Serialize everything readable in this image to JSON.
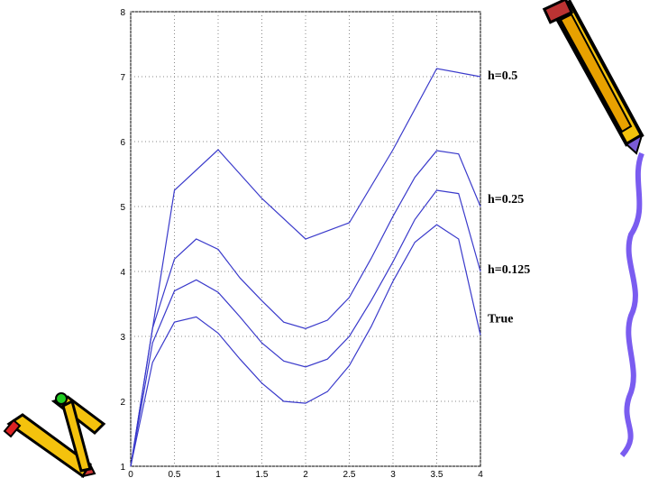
{
  "chart_data": {
    "type": "line",
    "xlim": [
      0,
      4
    ],
    "ylim": [
      1,
      8
    ],
    "xticks": [
      0,
      0.5,
      1,
      1.5,
      2,
      2.5,
      3,
      3.5,
      4
    ],
    "yticks": [
      1,
      2,
      3,
      4,
      5,
      6,
      7,
      8
    ],
    "grid": true,
    "series": [
      {
        "name": "h=0.5",
        "color": "#3a3acb",
        "x": [
          0,
          0.5,
          1,
          1.5,
          2,
          2.5,
          3,
          3.5,
          4
        ],
        "values": [
          1,
          5.25,
          5.875,
          5.125,
          4.5,
          4.75,
          5.875,
          7.125,
          7.0
        ]
      },
      {
        "name": "h=0.25",
        "color": "#3a3acb",
        "x": [
          0,
          0.25,
          0.5,
          0.75,
          1,
          1.25,
          1.5,
          1.75,
          2,
          2.25,
          2.5,
          2.75,
          3,
          3.25,
          3.5,
          3.75,
          4
        ],
        "values": [
          1,
          3.125,
          4.19,
          4.5,
          4.34,
          3.9,
          3.55,
          3.22,
          3.12,
          3.25,
          3.6,
          4.2,
          4.85,
          5.45,
          5.86,
          5.81,
          5.0
        ]
      },
      {
        "name": "h=0.125",
        "color": "#3a3acb",
        "x": [
          0,
          0.25,
          0.5,
          0.75,
          1,
          1.25,
          1.5,
          1.75,
          2,
          2.25,
          2.5,
          2.75,
          3,
          3.25,
          3.5,
          3.75,
          4
        ],
        "values": [
          1,
          2.9,
          3.7,
          3.87,
          3.68,
          3.3,
          2.9,
          2.62,
          2.53,
          2.65,
          3.0,
          3.55,
          4.15,
          4.8,
          5.25,
          5.2,
          4.0
        ]
      },
      {
        "name": "True",
        "color": "#3a3acb",
        "x": [
          0,
          0.25,
          0.5,
          0.75,
          1,
          1.25,
          1.5,
          1.75,
          2,
          2.25,
          2.5,
          2.75,
          3,
          3.25,
          3.5,
          3.75,
          4
        ],
        "values": [
          1,
          2.6,
          3.22,
          3.3,
          3.05,
          2.65,
          2.28,
          2.0,
          1.97,
          2.15,
          2.55,
          3.15,
          3.85,
          4.45,
          4.72,
          4.5,
          3.02
        ]
      }
    ]
  }
}
